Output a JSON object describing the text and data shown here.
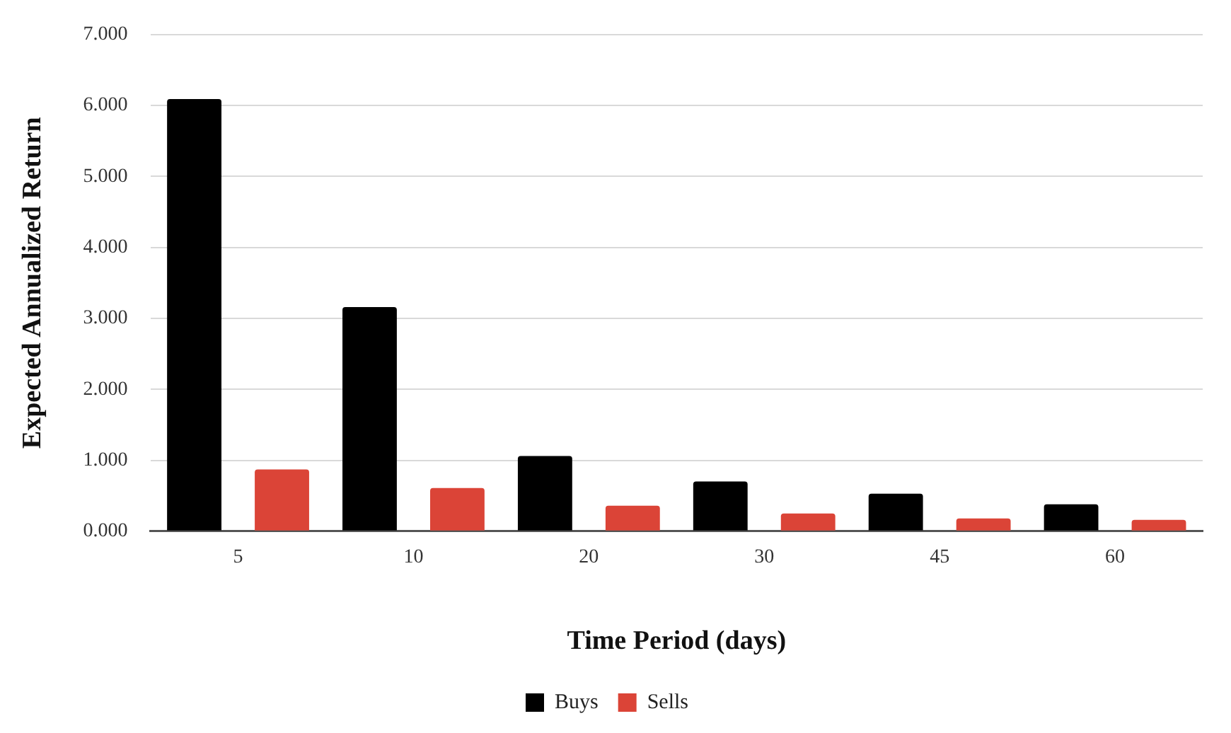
{
  "chart_data": {
    "type": "bar",
    "xlabel": "Time Period (days)",
    "ylabel": "Expected Annualized Return",
    "categories": [
      "5",
      "10",
      "20",
      "30",
      "45",
      "60"
    ],
    "series": [
      {
        "name": "Buys",
        "color": "#000000",
        "values": [
          6.09,
          3.16,
          1.06,
          0.7,
          0.53,
          0.38
        ]
      },
      {
        "name": "Sells",
        "color": "#db4437",
        "values": [
          0.87,
          0.61,
          0.36,
          0.25,
          0.18,
          0.16
        ]
      }
    ],
    "ylim": [
      0,
      7
    ],
    "yticks": [
      {
        "value": 0,
        "label": "0.000"
      },
      {
        "value": 1,
        "label": "1.000"
      },
      {
        "value": 2,
        "label": "2.000"
      },
      {
        "value": 3,
        "label": "3.000"
      },
      {
        "value": 4,
        "label": "4.000"
      },
      {
        "value": 5,
        "label": "5.000"
      },
      {
        "value": 6,
        "label": "6.000"
      },
      {
        "value": 7,
        "label": "7.000"
      }
    ],
    "grid": "y",
    "legend": "bottom"
  }
}
